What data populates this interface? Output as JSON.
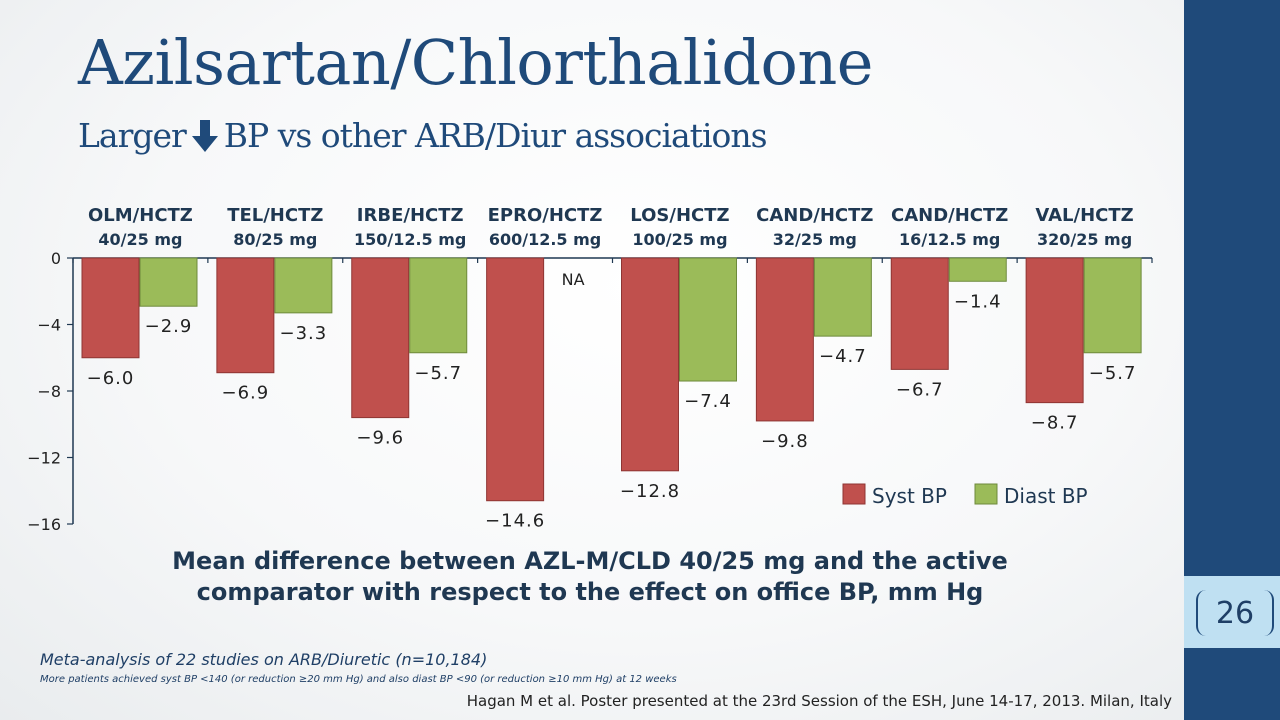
{
  "slide": {
    "title": "Azilsartan/Chlorthalidone",
    "subtitle_before": "Larger",
    "subtitle_after": "BP vs other ARB/Diur associations",
    "page_number": "26",
    "caption_line1": "Mean difference between AZL-M/CLD 40/25 mg and the active",
    "caption_line2": "comparator with respect to the effect on office BP, mm Hg",
    "footnote_main": "Meta-analysis of 22 studies on ARB/Diuretic (n=10,184)",
    "footnote_sub": "More patients achieved syst BP <140 (or reduction ≥20 mm Hg) and also diast BP <90 (or reduction ≥10 mm Hg) at 12 weeks",
    "reference": "Hagan M et al. Poster presented at the 23rd Session of the ESH, June 14-17, 2013. Milan, Italy"
  },
  "colors": {
    "title": "#1f4a7a",
    "sidebar": "#1f4a7a",
    "syst": "#c0504d",
    "diast": "#9bbb59"
  },
  "icons": {
    "subtitle_arrow": "down-arrow-icon"
  },
  "chart_data": {
    "type": "bar",
    "categories": [
      [
        "OLM/HCTZ",
        "40/25 mg"
      ],
      [
        "TEL/HCTZ",
        "80/25 mg"
      ],
      [
        "IRBE/HCTZ",
        "150/12.5 mg"
      ],
      [
        "EPRO/HCTZ",
        "600/12.5 mg"
      ],
      [
        "LOS/HCTZ",
        "100/25 mg"
      ],
      [
        "CAND/HCTZ",
        "32/25 mg"
      ],
      [
        "CAND/HCTZ",
        "16/12.5 mg"
      ],
      [
        "VAL/HCTZ",
        "320/25 mg"
      ]
    ],
    "series": [
      {
        "name": "Syst BP",
        "values": [
          -6.0,
          -6.9,
          -9.6,
          -14.6,
          -12.8,
          -9.8,
          -6.7,
          -8.7
        ],
        "labels": [
          "−6.0",
          "−6.9",
          "−9.6",
          "−14.6",
          "−12.8",
          "−9.8",
          "−6.7",
          "−8.7"
        ]
      },
      {
        "name": "Diast BP",
        "values": [
          -2.9,
          -3.3,
          -5.7,
          null,
          -7.4,
          -4.7,
          -1.4,
          -5.7
        ],
        "labels": [
          "−2.9",
          "−3.3",
          "−5.7",
          "NA",
          "−7.4",
          "−4.7",
          "−1.4",
          "−5.7"
        ]
      }
    ],
    "ylim": [
      -16,
      0
    ],
    "yticks": [
      0,
      -4,
      -8,
      -12,
      -16
    ],
    "ytick_labels": [
      "0",
      "−4",
      "−8",
      "−12",
      "−16"
    ],
    "legend_position": "bottom-right",
    "grid": false
  }
}
